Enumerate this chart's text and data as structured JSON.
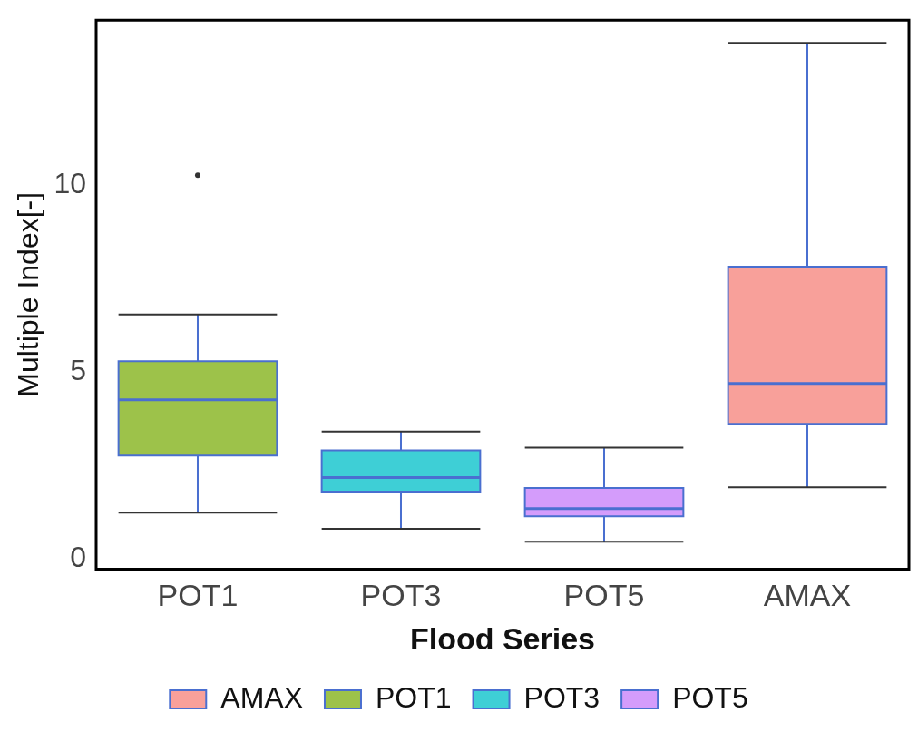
{
  "chart_data": {
    "type": "box",
    "xlabel": "Flood Series",
    "ylabel": "Multiple Index[-]",
    "categories": [
      "POT1",
      "POT3",
      "POT5",
      "AMAX"
    ],
    "ylim": [
      -0.28,
      14.41
    ],
    "yticks": [
      0,
      5,
      10
    ],
    "legend": "bottom",
    "series": [
      {
        "name": "AMAX",
        "color": "#f8a09a",
        "boxes": [
          null,
          null,
          null,
          {
            "low": 1.91,
            "q1": 3.61,
            "median": 4.69,
            "q3": 7.81,
            "high": 13.8
          }
        ]
      },
      {
        "name": "POT1",
        "color": "#9dc24a",
        "boxes": [
          {
            "low": 1.23,
            "q1": 2.76,
            "median": 4.25,
            "q3": 5.28,
            "high": 6.53,
            "outliers": [
              10.26
            ]
          },
          null,
          null,
          null
        ]
      },
      {
        "name": "POT3",
        "color": "#3ecfd6",
        "boxes": [
          null,
          {
            "low": 0.8,
            "q1": 1.79,
            "median": 2.17,
            "q3": 2.9,
            "high": 3.4
          },
          null,
          null
        ]
      },
      {
        "name": "POT5",
        "color": "#d49cfb",
        "boxes": [
          null,
          null,
          {
            "low": 0.45,
            "q1": 1.13,
            "median": 1.34,
            "q3": 1.89,
            "high": 2.97
          },
          null
        ]
      }
    ]
  }
}
